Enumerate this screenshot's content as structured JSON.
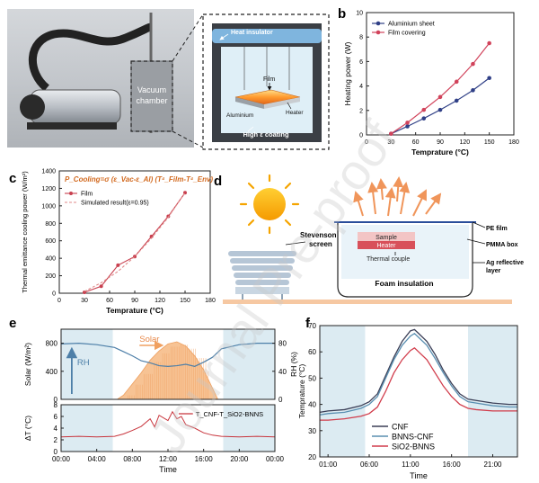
{
  "panels": {
    "a": {
      "label": "a",
      "vacuum_label": [
        "Vacuum",
        "chamber"
      ],
      "heat_insulator": "Heat insulator",
      "film": "Film",
      "aluminium": "Aluminium",
      "heater": "Heater",
      "coating": "High ε coating"
    },
    "d": {
      "label": "d",
      "stevenson": [
        "Stevenson",
        "screen"
      ],
      "sample": "Sample",
      "heater": "Heater",
      "thermal_couple": "Thermal couple",
      "foam": "Foam insulation",
      "pe_film": "PE film",
      "pmma_box": "PMMA box",
      "ag_layer": [
        "Ag reflective",
        "layer"
      ]
    }
  },
  "watermark": "Journal Pre-proof",
  "chart_data": [
    {
      "id": "b",
      "label": "b",
      "type": "line",
      "xlabel": "Temprature (°C)",
      "ylabel": "Heating power (W)",
      "xlim": [
        0,
        180
      ],
      "ylim": [
        0,
        10
      ],
      "xticks": [
        0,
        30,
        60,
        90,
        120,
        150,
        180
      ],
      "yticks": [
        0,
        2,
        4,
        6,
        8,
        10
      ],
      "series": [
        {
          "name": "Aluminium sheet",
          "color": "#2f3f86",
          "x": [
            30,
            50,
            70,
            90,
            110,
            130,
            150
          ],
          "y": [
            0.1,
            0.7,
            1.35,
            2.05,
            2.8,
            3.65,
            4.65
          ]
        },
        {
          "name": "Film covering",
          "color": "#d1435b",
          "x": [
            30,
            50,
            70,
            90,
            110,
            130,
            150
          ],
          "y": [
            0.1,
            1.0,
            2.05,
            3.1,
            4.35,
            5.8,
            7.5
          ]
        }
      ]
    },
    {
      "id": "c",
      "label": "c",
      "type": "line",
      "formula": "P_Cooling=σ (ε_Vac-ε_Al) (T⁴_Film-T⁴_Env)",
      "xlabel": "Temprature (°C)",
      "ylabel": "Thermal emittance cooling power (W/m²)",
      "xlim": [
        0,
        180
      ],
      "ylim": [
        0,
        1400
      ],
      "xticks": [
        0,
        30,
        60,
        90,
        120,
        150,
        180
      ],
      "yticks": [
        0,
        200,
        400,
        600,
        800,
        1000,
        1200,
        1400
      ],
      "series": [
        {
          "name": "Film",
          "color": "#c8404f",
          "style": "solid",
          "x": [
            30,
            50,
            70,
            90,
            110,
            130,
            150
          ],
          "y": [
            10,
            80,
            320,
            420,
            650,
            880,
            1150
          ]
        },
        {
          "name": "Simulated result(ε=0.95)",
          "color": "#e08a8a",
          "style": "dashed",
          "x": [
            30,
            50,
            70,
            90,
            110,
            130,
            150
          ],
          "y": [
            20,
            120,
            250,
            420,
            630,
            870,
            1150
          ]
        }
      ]
    },
    {
      "id": "e",
      "label": "e",
      "type": "area",
      "xlabel": "Time",
      "xticks": [
        "00:00",
        "04:00",
        "08:00",
        "12:00",
        "16:00",
        "20:00",
        "00:00"
      ],
      "top": {
        "ylabel_left": "Solar (W/m²)",
        "ylabel_right": "RH (%)",
        "ylim_left": [
          0,
          1000
        ],
        "yticks_left": [
          0,
          400,
          800
        ],
        "ylim_right": [
          0,
          100
        ],
        "yticks_right": [
          0,
          40,
          80
        ],
        "solar_label": "Solar",
        "rh_label": "RH",
        "solar": {
          "x_hours": [
            6.3,
            7,
            8,
            9,
            10,
            11,
            12,
            13,
            14,
            15,
            16,
            17,
            17.6
          ],
          "y": [
            0,
            60,
            220,
            380,
            560,
            690,
            790,
            820,
            760,
            620,
            420,
            160,
            0
          ]
        },
        "rh": {
          "x_hours": [
            0,
            2,
            4,
            6,
            7,
            8,
            9,
            10,
            11,
            12,
            13,
            14,
            15,
            16,
            17,
            18,
            20,
            22,
            24
          ],
          "y": [
            79,
            80,
            78,
            74,
            68,
            62,
            55,
            52,
            48,
            47,
            48,
            50,
            47,
            53,
            60,
            72,
            78,
            80,
            80
          ]
        }
      },
      "bottom": {
        "ylabel": "ΔT (°C)",
        "ylim": [
          0,
          8
        ],
        "yticks": [
          0,
          2,
          4,
          6,
          8
        ],
        "legend": "T_CNF-T_SiO2-BNNS",
        "dt": {
          "x_hours": [
            0,
            2,
            4,
            6,
            7,
            8,
            9,
            10,
            10.5,
            11,
            12,
            12.5,
            13,
            13.5,
            14,
            15,
            16,
            17,
            18,
            20,
            22,
            24
          ],
          "y": [
            2.5,
            2.6,
            2.5,
            2.6,
            3.0,
            3.6,
            4.3,
            5.6,
            4.2,
            6.2,
            5.3,
            6.8,
            5.6,
            6.0,
            4.6,
            4.0,
            3.2,
            2.8,
            2.6,
            2.5,
            2.6,
            2.5
          ]
        }
      }
    },
    {
      "id": "f",
      "label": "f",
      "type": "line",
      "xlabel": "Time",
      "ylabel": "Temprature (°C)",
      "ylim": [
        20,
        70
      ],
      "yticks": [
        20,
        30,
        40,
        50,
        60,
        70
      ],
      "xticks": [
        "01:00",
        "06:00",
        "11:00",
        "16:00",
        "21:00"
      ],
      "series": [
        {
          "name": "CNF",
          "color": "#3b3f57",
          "x_hours": [
            0,
            1,
            3,
            5,
            6,
            7,
            8,
            9,
            10,
            11,
            11.5,
            12,
            13,
            14,
            15,
            16,
            17,
            18,
            19,
            21,
            23,
            24
          ],
          "y": [
            37,
            37.5,
            38,
            39.5,
            41,
            44,
            51,
            58,
            64,
            68,
            68.5,
            67,
            64,
            59,
            53,
            48,
            44,
            42,
            41.5,
            40.5,
            40,
            40
          ]
        },
        {
          "name": "BNNS-CNF",
          "color": "#5a8fb1",
          "x_hours": [
            0,
            1,
            3,
            5,
            6,
            7,
            8,
            9,
            10,
            11,
            11.5,
            12,
            13,
            14,
            15,
            16,
            17,
            18,
            19,
            21,
            23,
            24
          ],
          "y": [
            36,
            36.5,
            37,
            38.5,
            40,
            43,
            50,
            57,
            62.5,
            66,
            67,
            65.5,
            62.5,
            57.5,
            52,
            47,
            43,
            41,
            40.5,
            39.5,
            39,
            39
          ]
        },
        {
          "name": "SiO2-BNNS",
          "color": "#d13c4b",
          "x_hours": [
            0,
            1,
            3,
            5,
            6,
            7,
            8,
            9,
            10,
            11,
            11.5,
            12,
            13,
            14,
            15,
            16,
            17,
            18,
            19,
            21,
            23,
            24
          ],
          "y": [
            34,
            34,
            34.5,
            35.5,
            36.5,
            39,
            45,
            52,
            57,
            60.5,
            61.5,
            60,
            57,
            52,
            47,
            43,
            40,
            38.5,
            38,
            37.5,
            37.5,
            37.5
          ]
        }
      ]
    }
  ]
}
